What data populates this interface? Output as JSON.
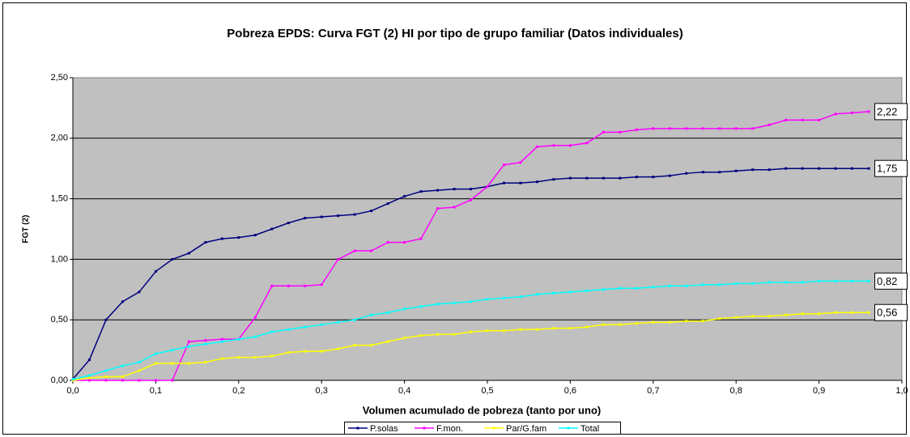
{
  "chart_data": {
    "type": "line",
    "title": "Pobreza EPDS: Curva FGT (2) HI por tipo de grupo familiar (Datos individuales)",
    "xlabel": "Volumen acumulado de pobreza (tanto por uno)",
    "ylabel": "FGT (2)",
    "x": [
      0,
      0.02,
      0.04,
      0.06,
      0.08,
      0.1,
      0.12,
      0.14,
      0.16,
      0.18,
      0.2,
      0.22,
      0.24,
      0.26,
      0.28,
      0.3,
      0.32,
      0.34,
      0.36,
      0.38,
      0.4,
      0.42,
      0.44,
      0.46,
      0.48,
      0.5,
      0.52,
      0.54,
      0.56,
      0.58,
      0.6,
      0.62,
      0.64,
      0.66,
      0.68,
      0.7,
      0.72,
      0.74,
      0.76,
      0.78,
      0.8,
      0.82,
      0.84,
      0.86,
      0.88,
      0.9,
      0.92,
      0.94,
      0.96
    ],
    "series": [
      {
        "name": "P.solas",
        "color": "#000080",
        "values": [
          0.01,
          0.17,
          0.5,
          0.65,
          0.73,
          0.9,
          1.0,
          1.05,
          1.14,
          1.17,
          1.18,
          1.2,
          1.25,
          1.3,
          1.34,
          1.35,
          1.36,
          1.37,
          1.4,
          1.46,
          1.52,
          1.56,
          1.57,
          1.58,
          1.58,
          1.6,
          1.63,
          1.63,
          1.64,
          1.66,
          1.67,
          1.67,
          1.67,
          1.67,
          1.68,
          1.68,
          1.69,
          1.71,
          1.72,
          1.72,
          1.73,
          1.74,
          1.74,
          1.75,
          1.75,
          1.75,
          1.75,
          1.75,
          1.75
        ],
        "value_labels": [
          null,
          null,
          null,
          null,
          null,
          null,
          null,
          null,
          null,
          null,
          null,
          null,
          null,
          null,
          null,
          null,
          null,
          null,
          null,
          null,
          null,
          null,
          null,
          null,
          null,
          null,
          null,
          null,
          null,
          null,
          null,
          null,
          null,
          null,
          null,
          null,
          null,
          null,
          null,
          null,
          null,
          null,
          null,
          null,
          null,
          null,
          null,
          null,
          "1,75"
        ]
      },
      {
        "name": "F.mon.",
        "color": "#ff00ff",
        "values": [
          0,
          0,
          0,
          0,
          0,
          0,
          0,
          0.32,
          0.33,
          0.34,
          0.34,
          0.52,
          0.78,
          0.78,
          0.78,
          0.79,
          1.0,
          1.07,
          1.07,
          1.14,
          1.14,
          1.17,
          1.42,
          1.43,
          1.49,
          1.6,
          1.78,
          1.8,
          1.93,
          1.94,
          1.94,
          1.96,
          2.05,
          2.05,
          2.07,
          2.08,
          2.08,
          2.08,
          2.08,
          2.08,
          2.08,
          2.08,
          2.11,
          2.15,
          2.15,
          2.15,
          2.2,
          2.21,
          2.22
        ],
        "value_labels": [
          null,
          null,
          null,
          null,
          null,
          null,
          null,
          null,
          null,
          null,
          null,
          null,
          null,
          null,
          null,
          null,
          null,
          null,
          null,
          null,
          null,
          null,
          null,
          null,
          null,
          null,
          null,
          null,
          null,
          null,
          null,
          null,
          null,
          null,
          null,
          null,
          null,
          null,
          null,
          null,
          null,
          null,
          null,
          null,
          null,
          null,
          null,
          null,
          "2,22"
        ]
      },
      {
        "name": "Par/G.fam",
        "color": "#ffff00",
        "values": [
          0,
          0.02,
          0.03,
          0.03,
          0.08,
          0.14,
          0.14,
          0.14,
          0.15,
          0.18,
          0.19,
          0.19,
          0.2,
          0.23,
          0.24,
          0.24,
          0.26,
          0.29,
          0.29,
          0.32,
          0.35,
          0.37,
          0.38,
          0.38,
          0.4,
          0.41,
          0.41,
          0.42,
          0.42,
          0.43,
          0.43,
          0.44,
          0.46,
          0.46,
          0.47,
          0.48,
          0.48,
          0.49,
          0.49,
          0.51,
          0.52,
          0.53,
          0.53,
          0.54,
          0.55,
          0.55,
          0.56,
          0.56,
          0.56
        ],
        "value_labels": [
          null,
          null,
          null,
          null,
          null,
          null,
          null,
          null,
          null,
          null,
          null,
          null,
          null,
          null,
          null,
          null,
          null,
          null,
          null,
          null,
          null,
          null,
          null,
          null,
          null,
          null,
          null,
          null,
          null,
          null,
          null,
          null,
          null,
          null,
          null,
          null,
          null,
          null,
          null,
          null,
          null,
          null,
          null,
          null,
          null,
          null,
          null,
          null,
          "0,56"
        ]
      },
      {
        "name": "Total",
        "color": "#00ffff",
        "values": [
          0.01,
          0.04,
          0.08,
          0.12,
          0.15,
          0.22,
          0.25,
          0.28,
          0.3,
          0.32,
          0.34,
          0.36,
          0.4,
          0.42,
          0.44,
          0.46,
          0.48,
          0.5,
          0.54,
          0.56,
          0.59,
          0.61,
          0.63,
          0.64,
          0.65,
          0.67,
          0.68,
          0.69,
          0.71,
          0.72,
          0.73,
          0.74,
          0.75,
          0.76,
          0.76,
          0.77,
          0.78,
          0.78,
          0.79,
          0.79,
          0.8,
          0.8,
          0.81,
          0.81,
          0.81,
          0.82,
          0.82,
          0.82,
          0.82
        ],
        "value_labels": [
          null,
          null,
          null,
          null,
          null,
          null,
          null,
          null,
          null,
          null,
          null,
          null,
          null,
          null,
          null,
          null,
          null,
          null,
          null,
          null,
          null,
          null,
          null,
          null,
          null,
          null,
          null,
          null,
          null,
          null,
          null,
          null,
          null,
          null,
          null,
          null,
          null,
          null,
          null,
          null,
          null,
          null,
          null,
          null,
          null,
          null,
          null,
          null,
          "0,82"
        ]
      }
    ],
    "xlim": [
      0,
      1
    ],
    "ylim": [
      0,
      2.5
    ],
    "xticks": [
      {
        "value": 0,
        "label": "0,0"
      },
      {
        "value": 0.1,
        "label": "0,1"
      },
      {
        "value": 0.2,
        "label": "0,2"
      },
      {
        "value": 0.3,
        "label": "0,3"
      },
      {
        "value": 0.4,
        "label": "0,4"
      },
      {
        "value": 0.5,
        "label": "0,5"
      },
      {
        "value": 0.6,
        "label": "0,6"
      },
      {
        "value": 0.7,
        "label": "0,7"
      },
      {
        "value": 0.8,
        "label": "0,8"
      },
      {
        "value": 0.9,
        "label": "0,9"
      },
      {
        "value": 1,
        "label": "1,0"
      }
    ],
    "yticks": [
      {
        "value": 0,
        "label": "0,00"
      },
      {
        "value": 0.5,
        "label": "0,50"
      },
      {
        "value": 1,
        "label": "1,00"
      },
      {
        "value": 1.5,
        "label": "1,50"
      },
      {
        "value": 2,
        "label": "2,00"
      },
      {
        "value": 2.5,
        "label": "2,50"
      }
    ],
    "grid": true,
    "legend": "bottom"
  }
}
